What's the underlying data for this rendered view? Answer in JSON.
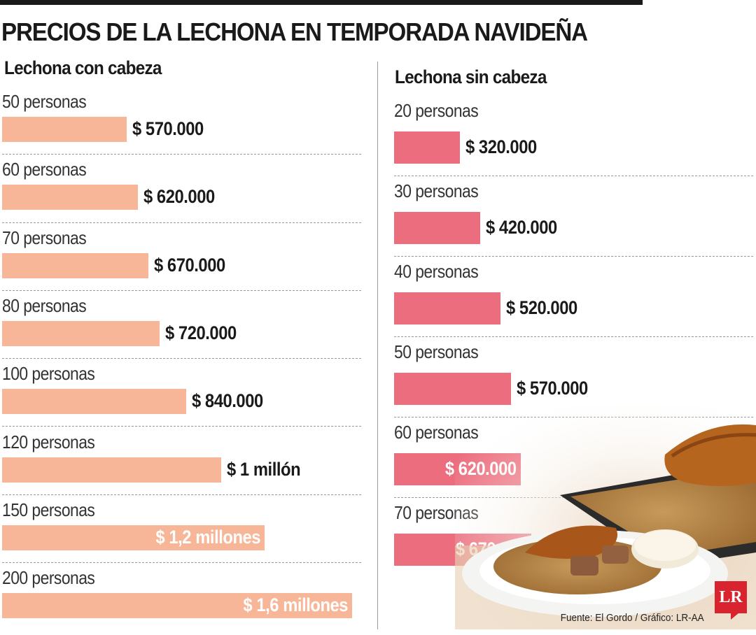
{
  "title": "PRECIOS DE LA LECHONA EN TEMPORADA NAVIDEÑA",
  "source": "Fuente: El Gordo / Gráfico: LR-AA",
  "logo": "LR",
  "colors": {
    "left_bar": "#f7b697",
    "right_bar": "#ec6d7e",
    "text": "#1a1a1a"
  },
  "chart_data": [
    {
      "type": "bar",
      "orientation": "horizontal",
      "title": "Lechona con cabeza",
      "categories": [
        "50 personas",
        "60 personas",
        "70 personas",
        "80 personas",
        "100 personas",
        "120 personas",
        "150 personas",
        "200 personas"
      ],
      "values": [
        570000,
        620000,
        670000,
        720000,
        840000,
        1000000,
        1200000,
        1600000
      ],
      "value_labels": [
        "$ 570.000",
        "$ 620.000",
        "$ 670.000",
        "$ 720.000",
        "$ 840.000",
        "$ 1 millón",
        "$ 1,2 millones",
        "$ 1,6 millones"
      ],
      "color": "#f7b697"
    },
    {
      "type": "bar",
      "orientation": "horizontal",
      "title": "Lechona sin cabeza",
      "categories": [
        "20 personas",
        "30 personas",
        "40 personas",
        "50 personas",
        "60 personas",
        "70 personas"
      ],
      "values": [
        320000,
        420000,
        520000,
        570000,
        620000,
        670000
      ],
      "value_labels": [
        "$ 320.000",
        "$ 420.000",
        "$ 520.000",
        "$ 570.000",
        "$ 620.000",
        "$ 670.000"
      ],
      "color": "#ec6d7e"
    }
  ]
}
